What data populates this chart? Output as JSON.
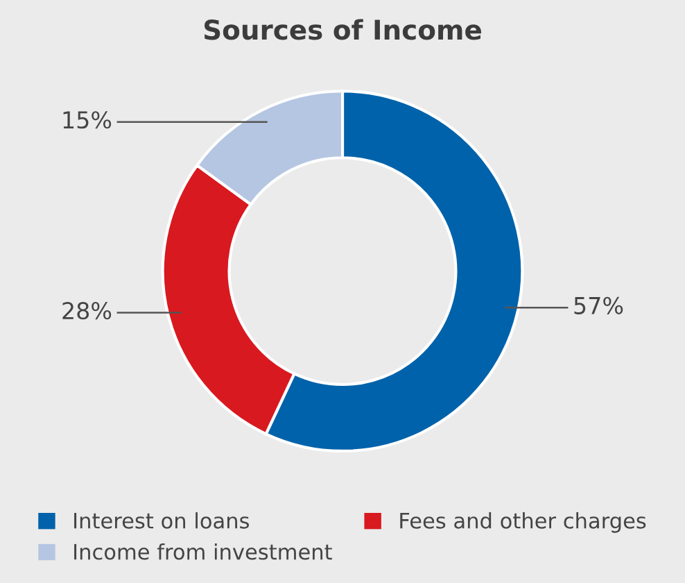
{
  "chart_data": {
    "type": "donut",
    "title": "Sources of Income",
    "categories": [
      "Interest on loans",
      "Fees and other charges",
      "Income from investment"
    ],
    "values": [
      57,
      28,
      15
    ],
    "colors": [
      "#0062aa",
      "#d8191f",
      "#b5c6e2"
    ],
    "value_labels": [
      "57%",
      "28%",
      "15%"
    ],
    "legend": "bottom"
  }
}
